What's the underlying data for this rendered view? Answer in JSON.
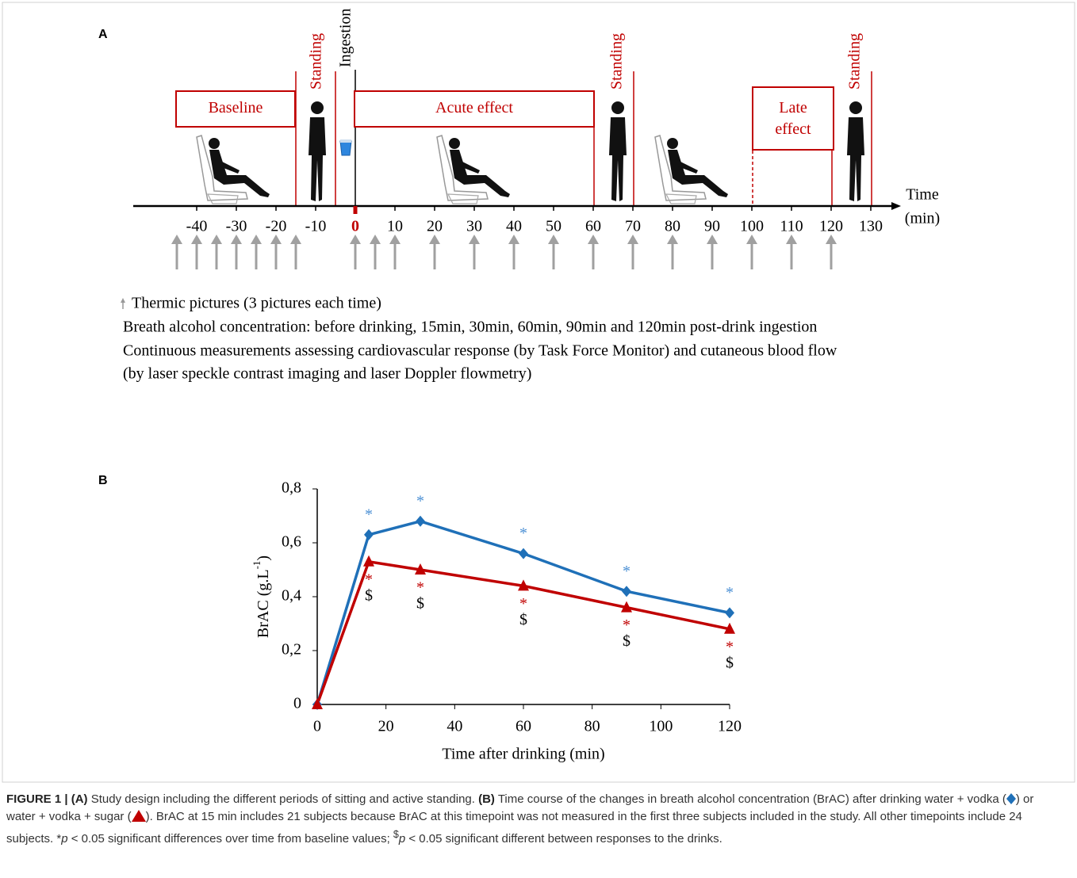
{
  "panel_a": {
    "label": "A",
    "periods": [
      "Baseline",
      "Acute effect",
      "Late effect"
    ],
    "events": [
      "Standing",
      "Ingestion",
      "Standing",
      "Standing"
    ],
    "axis": {
      "title": "Time",
      "unit": "(min)",
      "xlim": [
        -56,
        136
      ],
      "ticks": [
        -40,
        -30,
        -20,
        -10,
        0,
        10,
        20,
        30,
        40,
        50,
        60,
        70,
        80,
        90,
        100,
        110,
        120,
        130
      ]
    },
    "thermic_picture_times": [
      -45,
      -40,
      -35,
      -30,
      -25,
      -20,
      -15,
      0,
      5,
      10,
      20,
      30,
      40,
      50,
      60,
      70,
      80,
      90,
      100,
      110,
      120
    ],
    "notes": [
      "Thermic pictures (3 pictures each time)",
      "Breath alcohol concentration: before drinking, 15min, 30min, 60min, 90min and 120min post-drink ingestion",
      "Continuous measurements assessing cardiovascular response (by Task Force Monitor) and cutaneous blood flow",
      "(by laser speckle contrast imaging and laser Doppler flowmetry)"
    ]
  },
  "panel_b_label": "B",
  "chart_data": {
    "type": "line",
    "xlabel": "Time after drinking (min)",
    "ylabel": [
      "BrAC (g.L",
      "-1",
      ")"
    ],
    "x": [
      0,
      15,
      30,
      60,
      90,
      120
    ],
    "xlim": [
      0,
      120
    ],
    "xticks": [
      0,
      20,
      40,
      60,
      80,
      100,
      120
    ],
    "ylim": [
      0,
      0.8
    ],
    "yticks": [
      0,
      {
        "value": 0.2,
        "label": "0,2"
      },
      {
        "value": 0.4,
        "label": "0,4"
      },
      {
        "value": 0.6,
        "label": "0,6"
      },
      {
        "value": 0.8,
        "label": "0,8"
      }
    ],
    "series": [
      {
        "color": "#1f70b8",
        "marker": "diamond",
        "values": [
          0,
          0.63,
          0.68,
          0.56,
          0.42,
          0.34
        ],
        "time_marks": [
          null,
          "*",
          "*",
          "*",
          "*",
          "*"
        ]
      },
      {
        "color": "#c00000",
        "marker": "triangle",
        "values": [
          0,
          0.53,
          0.5,
          0.44,
          0.36,
          0.28
        ],
        "time_marks": [
          null,
          "*",
          "*",
          "*",
          "*",
          "*"
        ],
        "drink_marks": [
          null,
          "$",
          "$",
          "$",
          "$",
          "$"
        ]
      }
    ]
  },
  "caption": [
    "FIGURE 1 | (A)",
    " Study design including the different periods of sitting and active standing. ",
    "(B)",
    " Time course of the changes in breath alcohol concentration (BrAC) after drinking water + vodka (",
    ") or water + vodka + sugar (",
    "). BrAC at 15 min includes 21 subjects because BrAC at this timepoint was not measured in the first three subjects included in the study. All other timepoints include 24 subjects. *",
    "p",
    " < 0.05 significant differences over time from baseline values; ",
    "$",
    "p",
    " < 0.05 significant different between responses to the drinks."
  ]
}
